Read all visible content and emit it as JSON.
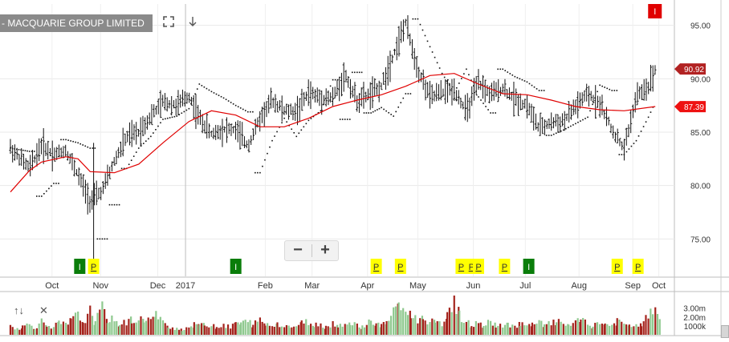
{
  "header": {
    "title": "- MACQUARIE GROUP LIMITED",
    "fit_icon": "expand-icon",
    "download_icon": "arrow-down-icon"
  },
  "zoom": {
    "minus": "−",
    "plus": "+"
  },
  "volume_tools": {
    "collapse": "↑↓",
    "close": "✕"
  },
  "chart_data": {
    "type": "ohlc",
    "instrument": "MACQUARIE GROUP LIMITED",
    "x_tick_labels": [
      "Oct",
      "Nov",
      "Dec",
      "2017",
      "Feb",
      "Mar",
      "Apr",
      "May",
      "Jun",
      "Jul",
      "Aug",
      "Sep",
      "Oct"
    ],
    "y_tick_labels": [
      "75.00",
      "80.00",
      "85.00",
      "90.00",
      "95.00"
    ],
    "ylim": [
      71.5,
      97
    ],
    "volume_tick_labels": [
      "3.00m",
      "2.00m",
      "1000k"
    ],
    "volume_ylim": [
      0,
      4500000
    ],
    "last_price_label": "90.92",
    "moving_average_label": "87.39",
    "price_series": [
      {
        "x": "2016-09-22",
        "y": 83.5
      },
      {
        "x": "2016-10-03",
        "y": 81.6
      },
      {
        "x": "2016-10-10",
        "y": 83.8
      },
      {
        "x": "2016-10-17",
        "y": 82.9
      },
      {
        "x": "2016-10-24",
        "y": 83.3
      },
      {
        "x": "2016-10-31",
        "y": 81.0
      },
      {
        "x": "2016-11-07",
        "y": 78.5
      },
      {
        "x": "2016-11-14",
        "y": 79.5
      },
      {
        "x": "2016-11-21",
        "y": 82.3
      },
      {
        "x": "2016-11-28",
        "y": 84.5
      },
      {
        "x": "2016-12-05",
        "y": 85.0
      },
      {
        "x": "2016-12-12",
        "y": 86.5
      },
      {
        "x": "2016-12-19",
        "y": 87.8
      },
      {
        "x": "2016-12-27",
        "y": 87.5
      },
      {
        "x": "2017-01-03",
        "y": 88.4
      },
      {
        "x": "2017-01-09",
        "y": 86.3
      },
      {
        "x": "2017-01-16",
        "y": 84.8
      },
      {
        "x": "2017-01-23",
        "y": 85.3
      },
      {
        "x": "2017-01-30",
        "y": 85.2
      },
      {
        "x": "2017-02-06",
        "y": 83.7
      },
      {
        "x": "2017-02-13",
        "y": 86.3
      },
      {
        "x": "2017-02-20",
        "y": 88.0
      },
      {
        "x": "2017-02-27",
        "y": 87.0
      },
      {
        "x": "2017-03-06",
        "y": 86.9
      },
      {
        "x": "2017-03-13",
        "y": 88.7
      },
      {
        "x": "2017-03-20",
        "y": 88.2
      },
      {
        "x": "2017-03-27",
        "y": 88.2
      },
      {
        "x": "2017-04-03",
        "y": 90.4
      },
      {
        "x": "2017-04-10",
        "y": 87.9
      },
      {
        "x": "2017-04-18",
        "y": 88.6
      },
      {
        "x": "2017-04-24",
        "y": 89.3
      },
      {
        "x": "2017-05-01",
        "y": 92.3
      },
      {
        "x": "2017-05-08",
        "y": 95.2
      },
      {
        "x": "2017-05-15",
        "y": 90.9
      },
      {
        "x": "2017-05-22",
        "y": 88.3
      },
      {
        "x": "2017-05-29",
        "y": 88.7
      },
      {
        "x": "2017-06-05",
        "y": 89.0
      },
      {
        "x": "2017-06-12",
        "y": 86.9
      },
      {
        "x": "2017-06-19",
        "y": 89.6
      },
      {
        "x": "2017-06-26",
        "y": 88.5
      },
      {
        "x": "2017-07-03",
        "y": 89.1
      },
      {
        "x": "2017-07-10",
        "y": 88.1
      },
      {
        "x": "2017-07-17",
        "y": 87.5
      },
      {
        "x": "2017-07-24",
        "y": 85.3
      },
      {
        "x": "2017-07-31",
        "y": 85.9
      },
      {
        "x": "2017-08-07",
        "y": 86.0
      },
      {
        "x": "2017-08-14",
        "y": 87.4
      },
      {
        "x": "2017-08-21",
        "y": 88.5
      },
      {
        "x": "2017-08-28",
        "y": 87.7
      },
      {
        "x": "2017-09-04",
        "y": 85.2
      },
      {
        "x": "2017-09-11",
        "y": 83.4
      },
      {
        "x": "2017-09-18",
        "y": 88.3
      },
      {
        "x": "2017-09-25",
        "y": 89.3
      },
      {
        "x": "2017-09-29",
        "y": 90.9
      }
    ],
    "moving_average_series": [
      {
        "x": "2016-09-22",
        "y": 79.4
      },
      {
        "x": "2016-10-03",
        "y": 81.4
      },
      {
        "x": "2016-10-10",
        "y": 82.2
      },
      {
        "x": "2016-10-24",
        "y": 82.7
      },
      {
        "x": "2016-10-31",
        "y": 82.5
      },
      {
        "x": "2016-11-07",
        "y": 81.3
      },
      {
        "x": "2016-11-21",
        "y": 81.2
      },
      {
        "x": "2016-12-05",
        "y": 82.0
      },
      {
        "x": "2016-12-19",
        "y": 84.0
      },
      {
        "x": "2017-01-03",
        "y": 86.0
      },
      {
        "x": "2017-01-16",
        "y": 87.0
      },
      {
        "x": "2017-01-30",
        "y": 86.6
      },
      {
        "x": "2017-02-13",
        "y": 85.5
      },
      {
        "x": "2017-02-27",
        "y": 85.5
      },
      {
        "x": "2017-03-13",
        "y": 86.3
      },
      {
        "x": "2017-03-27",
        "y": 87.4
      },
      {
        "x": "2017-04-10",
        "y": 88.0
      },
      {
        "x": "2017-04-24",
        "y": 88.5
      },
      {
        "x": "2017-05-08",
        "y": 89.3
      },
      {
        "x": "2017-05-22",
        "y": 90.3
      },
      {
        "x": "2017-06-05",
        "y": 90.5
      },
      {
        "x": "2017-06-19",
        "y": 89.5
      },
      {
        "x": "2017-07-03",
        "y": 88.6
      },
      {
        "x": "2017-07-17",
        "y": 88.5
      },
      {
        "x": "2017-07-31",
        "y": 88.0
      },
      {
        "x": "2017-08-14",
        "y": 87.4
      },
      {
        "x": "2017-08-28",
        "y": 87.1
      },
      {
        "x": "2017-09-11",
        "y": 87.0
      },
      {
        "x": "2017-09-29",
        "y": 87.4
      }
    ],
    "psar_series": [
      {
        "x": "2016-09-22",
        "y": 83.5
      },
      {
        "x": "2016-10-03",
        "y": 83.2
      },
      {
        "x": "2016-10-10",
        "y": 79.0
      },
      {
        "x": "2016-10-17",
        "y": 80.2
      },
      {
        "x": "2016-10-24",
        "y": 84.3
      },
      {
        "x": "2016-10-31",
        "y": 84.0
      },
      {
        "x": "2016-11-07",
        "y": 83.5
      },
      {
        "x": "2016-11-14",
        "y": 75.0
      },
      {
        "x": "2016-11-21",
        "y": 78.2
      },
      {
        "x": "2016-11-28",
        "y": 81.6
      },
      {
        "x": "2016-12-05",
        "y": 83.5
      },
      {
        "x": "2016-12-12",
        "y": 84.6
      },
      {
        "x": "2016-12-19",
        "y": 86.2
      },
      {
        "x": "2016-12-27",
        "y": 86.5
      },
      {
        "x": "2017-01-03",
        "y": 87.2
      },
      {
        "x": "2017-01-09",
        "y": 89.5
      },
      {
        "x": "2017-01-16",
        "y": 88.8
      },
      {
        "x": "2017-01-23",
        "y": 88.2
      },
      {
        "x": "2017-01-30",
        "y": 87.5
      },
      {
        "x": "2017-02-06",
        "y": 86.9
      },
      {
        "x": "2017-02-13",
        "y": 81.2
      },
      {
        "x": "2017-02-20",
        "y": 84.2
      },
      {
        "x": "2017-02-27",
        "y": 86.3
      },
      {
        "x": "2017-03-06",
        "y": 84.6
      },
      {
        "x": "2017-03-13",
        "y": 86.1
      },
      {
        "x": "2017-03-20",
        "y": 87.0
      },
      {
        "x": "2017-03-27",
        "y": 89.9
      },
      {
        "x": "2017-04-03",
        "y": 86.2
      },
      {
        "x": "2017-04-10",
        "y": 90.6
      },
      {
        "x": "2017-04-18",
        "y": 86.8
      },
      {
        "x": "2017-04-24",
        "y": 87.3
      },
      {
        "x": "2017-05-01",
        "y": 86.5
      },
      {
        "x": "2017-05-08",
        "y": 88.6
      },
      {
        "x": "2017-05-15",
        "y": 95.6
      },
      {
        "x": "2017-05-22",
        "y": 93.0
      },
      {
        "x": "2017-05-29",
        "y": 90.5
      },
      {
        "x": "2017-06-05",
        "y": 88.7
      },
      {
        "x": "2017-06-12",
        "y": 90.9
      },
      {
        "x": "2017-06-19",
        "y": 88.3
      },
      {
        "x": "2017-06-26",
        "y": 86.8
      },
      {
        "x": "2017-07-03",
        "y": 90.9
      },
      {
        "x": "2017-07-10",
        "y": 90.2
      },
      {
        "x": "2017-07-17",
        "y": 89.7
      },
      {
        "x": "2017-07-24",
        "y": 88.9
      },
      {
        "x": "2017-07-31",
        "y": 84.7
      },
      {
        "x": "2017-08-07",
        "y": 85.2
      },
      {
        "x": "2017-08-14",
        "y": 85.8
      },
      {
        "x": "2017-08-21",
        "y": 86.4
      },
      {
        "x": "2017-08-28",
        "y": 89.4
      },
      {
        "x": "2017-09-04",
        "y": 88.9
      },
      {
        "x": "2017-09-11",
        "y": 82.9
      },
      {
        "x": "2017-09-18",
        "y": 84.2
      },
      {
        "x": "2017-09-25",
        "y": 86.4
      },
      {
        "x": "2017-09-29",
        "y": 87.8
      }
    ],
    "signal_markers": [
      {
        "label": "I",
        "x": "2016-11-01",
        "color": "#0a7d0a"
      },
      {
        "label": "P",
        "x": "2016-11-09",
        "color": "#ffff00"
      },
      {
        "label": "I",
        "x": "2017-01-30",
        "color": "#0a7d0a"
      },
      {
        "label": "P",
        "x": "2017-04-21",
        "color": "#ffff00"
      },
      {
        "label": "P",
        "x": "2017-05-05",
        "color": "#ffff00"
      },
      {
        "label": "P",
        "x": "2017-06-09",
        "color": "#ffff00"
      },
      {
        "label": "P",
        "x": "2017-06-15",
        "color": "#ffff00"
      },
      {
        "label": "P",
        "x": "2017-06-19",
        "color": "#ffff00"
      },
      {
        "label": "P",
        "x": "2017-07-04",
        "color": "#ffff00"
      },
      {
        "label": "I",
        "x": "2017-07-18",
        "color": "#0a7d0a"
      },
      {
        "label": "P",
        "x": "2017-09-07",
        "color": "#ffff00"
      },
      {
        "label": "P",
        "x": "2017-09-19",
        "color": "#ffff00"
      }
    ],
    "top_marker": {
      "label": "I",
      "x": "2017-09-29",
      "color": "#e00000"
    },
    "colors": {
      "bars": "#111111",
      "moving_average": "#e00000",
      "psar": "#111111",
      "volume_up": "#8fc98f",
      "volume_down": "#a4231c",
      "last_price_badge": "#b22222",
      "ma_badge": "#ee1111"
    },
    "grid": true,
    "volume_series": [
      {
        "x": "2016-09-22",
        "v": 1000000
      },
      {
        "x": "2016-09-26",
        "v": 700000
      },
      {
        "x": "2016-09-29",
        "v": 900000
      },
      {
        "x": "2016-10-03",
        "v": 1200000
      },
      {
        "x": "2016-10-06",
        "v": 800000
      },
      {
        "x": "2016-10-10",
        "v": 1500000
      },
      {
        "x": "2016-10-13",
        "v": 1100000
      },
      {
        "x": "2016-10-17",
        "v": 900000
      },
      {
        "x": "2016-10-20",
        "v": 1300000
      },
      {
        "x": "2016-10-24",
        "v": 1100000
      },
      {
        "x": "2016-10-27",
        "v": 1600000
      },
      {
        "x": "2016-10-31",
        "v": 2200000
      },
      {
        "x": "2016-11-03",
        "v": 1400000
      },
      {
        "x": "2016-11-07",
        "v": 2600000
      },
      {
        "x": "2016-11-10",
        "v": 1400000
      },
      {
        "x": "2016-11-14",
        "v": 3000000
      },
      {
        "x": "2016-11-17",
        "v": 1800000
      },
      {
        "x": "2016-11-21",
        "v": 1600000
      },
      {
        "x": "2016-11-24",
        "v": 1200000
      },
      {
        "x": "2016-11-28",
        "v": 1400000
      },
      {
        "x": "2016-12-01",
        "v": 1700000
      },
      {
        "x": "2016-12-05",
        "v": 1500000
      },
      {
        "x": "2016-12-08",
        "v": 1900000
      },
      {
        "x": "2016-12-12",
        "v": 1600000
      },
      {
        "x": "2016-12-15",
        "v": 2200000
      },
      {
        "x": "2016-12-19",
        "v": 1300000
      },
      {
        "x": "2016-12-22",
        "v": 1000000
      },
      {
        "x": "2016-12-27",
        "v": 700000
      },
      {
        "x": "2016-12-30",
        "v": 600000
      },
      {
        "x": "2017-01-03",
        "v": 900000
      },
      {
        "x": "2017-01-06",
        "v": 1100000
      },
      {
        "x": "2017-01-09",
        "v": 1300000
      },
      {
        "x": "2017-01-12",
        "v": 1000000
      },
      {
        "x": "2017-01-16",
        "v": 1200000
      },
      {
        "x": "2017-01-19",
        "v": 900000
      },
      {
        "x": "2017-01-23",
        "v": 1100000
      },
      {
        "x": "2017-01-27",
        "v": 800000
      },
      {
        "x": "2017-01-30",
        "v": 1400000
      },
      {
        "x": "2017-02-02",
        "v": 1200000
      },
      {
        "x": "2017-02-06",
        "v": 1600000
      },
      {
        "x": "2017-02-09",
        "v": 1100000
      },
      {
        "x": "2017-02-13",
        "v": 1700000
      },
      {
        "x": "2017-02-16",
        "v": 1200000
      },
      {
        "x": "2017-02-20",
        "v": 1000000
      },
      {
        "x": "2017-02-23",
        "v": 1300000
      },
      {
        "x": "2017-02-27",
        "v": 1100000
      },
      {
        "x": "2017-03-02",
        "v": 900000
      },
      {
        "x": "2017-03-06",
        "v": 1000000
      },
      {
        "x": "2017-03-09",
        "v": 1300000
      },
      {
        "x": "2017-03-13",
        "v": 1500000
      },
      {
        "x": "2017-03-16",
        "v": 1100000
      },
      {
        "x": "2017-03-20",
        "v": 1200000
      },
      {
        "x": "2017-03-23",
        "v": 900000
      },
      {
        "x": "2017-03-27",
        "v": 1300000
      },
      {
        "x": "2017-03-30",
        "v": 1000000
      },
      {
        "x": "2017-04-03",
        "v": 1400000
      },
      {
        "x": "2017-04-06",
        "v": 1200000
      },
      {
        "x": "2017-04-10",
        "v": 1100000
      },
      {
        "x": "2017-04-13",
        "v": 900000
      },
      {
        "x": "2017-04-18",
        "v": 1600000
      },
      {
        "x": "2017-04-21",
        "v": 1200000
      },
      {
        "x": "2017-04-24",
        "v": 1000000
      },
      {
        "x": "2017-04-27",
        "v": 1500000
      },
      {
        "x": "2017-05-01",
        "v": 2400000
      },
      {
        "x": "2017-05-04",
        "v": 3600000
      },
      {
        "x": "2017-05-08",
        "v": 2600000
      },
      {
        "x": "2017-05-11",
        "v": 2200000
      },
      {
        "x": "2017-05-15",
        "v": 1700000
      },
      {
        "x": "2017-05-18",
        "v": 1900000
      },
      {
        "x": "2017-05-22",
        "v": 1500000
      },
      {
        "x": "2017-05-25",
        "v": 1300000
      },
      {
        "x": "2017-05-29",
        "v": 1200000
      },
      {
        "x": "2017-06-01",
        "v": 2500000
      },
      {
        "x": "2017-06-05",
        "v": 4100000
      },
      {
        "x": "2017-06-08",
        "v": 2200000
      },
      {
        "x": "2017-06-12",
        "v": 1400000
      },
      {
        "x": "2017-06-15",
        "v": 1100000
      },
      {
        "x": "2017-06-19",
        "v": 1300000
      },
      {
        "x": "2017-06-22",
        "v": 1000000
      },
      {
        "x": "2017-06-26",
        "v": 1500000
      },
      {
        "x": "2017-06-29",
        "v": 1100000
      },
      {
        "x": "2017-07-03",
        "v": 900000
      },
      {
        "x": "2017-07-06",
        "v": 1200000
      },
      {
        "x": "2017-07-10",
        "v": 1000000
      },
      {
        "x": "2017-07-13",
        "v": 1300000
      },
      {
        "x": "2017-07-17",
        "v": 900000
      },
      {
        "x": "2017-07-20",
        "v": 1100000
      },
      {
        "x": "2017-07-24",
        "v": 1400000
      },
      {
        "x": "2017-07-27",
        "v": 1000000
      },
      {
        "x": "2017-07-31",
        "v": 1300000
      },
      {
        "x": "2017-08-03",
        "v": 1500000
      },
      {
        "x": "2017-08-07",
        "v": 1100000
      },
      {
        "x": "2017-08-10",
        "v": 1200000
      },
      {
        "x": "2017-08-14",
        "v": 1300000
      },
      {
        "x": "2017-08-17",
        "v": 1700000
      },
      {
        "x": "2017-08-21",
        "v": 1100000
      },
      {
        "x": "2017-08-24",
        "v": 1000000
      },
      {
        "x": "2017-08-28",
        "v": 1400000
      },
      {
        "x": "2017-08-31",
        "v": 1200000
      },
      {
        "x": "2017-09-04",
        "v": 1000000
      },
      {
        "x": "2017-09-07",
        "v": 1500000
      },
      {
        "x": "2017-09-11",
        "v": 1200000
      },
      {
        "x": "2017-09-14",
        "v": 900000
      },
      {
        "x": "2017-09-18",
        "v": 1200000
      },
      {
        "x": "2017-09-21",
        "v": 1000000
      },
      {
        "x": "2017-09-25",
        "v": 2300000
      },
      {
        "x": "2017-09-29",
        "v": 2400000
      }
    ]
  }
}
